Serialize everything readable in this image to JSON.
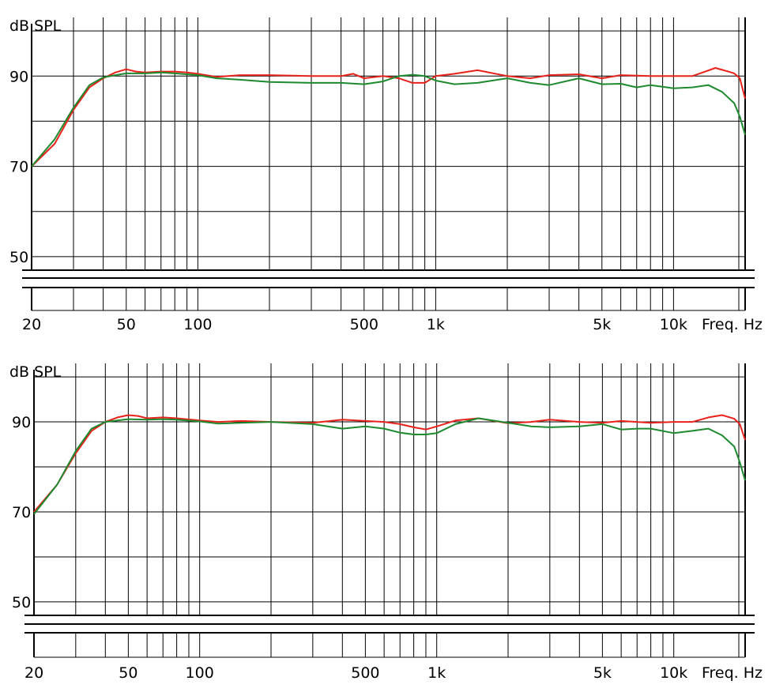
{
  "chart_data": [
    {
      "type": "line",
      "ylabel": "dB SPL",
      "xlabel": "Freq. Hz",
      "x_scale": "log",
      "xlim": [
        20,
        20000
      ],
      "ylim": [
        47,
        103
      ],
      "y_ticks": [
        50,
        70,
        90
      ],
      "x_ticks": [
        20,
        50,
        100,
        500,
        "1k",
        "5k",
        "10k"
      ],
      "grid": true,
      "legend": "none",
      "series": [
        {
          "color": "#e8221b",
          "points": [
            [
              20,
              70
            ],
            [
              25,
              75
            ],
            [
              30,
              82.5
            ],
            [
              35,
              87.5
            ],
            [
              40,
              89.5
            ],
            [
              45,
              90.8
            ],
            [
              50,
              91.5
            ],
            [
              55,
              91
            ],
            [
              60,
              90.8
            ],
            [
              70,
              91
            ],
            [
              80,
              91
            ],
            [
              90,
              90.8
            ],
            [
              100,
              90.5
            ],
            [
              120,
              89.8
            ],
            [
              150,
              90.2
            ],
            [
              200,
              90.2
            ],
            [
              300,
              90
            ],
            [
              400,
              90
            ],
            [
              450,
              90.5
            ],
            [
              500,
              89.5
            ],
            [
              600,
              90
            ],
            [
              700,
              89.5
            ],
            [
              800,
              88.5
            ],
            [
              900,
              88.5
            ],
            [
              1000,
              90
            ],
            [
              1200,
              90.5
            ],
            [
              1500,
              91.3
            ],
            [
              2000,
              90
            ],
            [
              2500,
              89.5
            ],
            [
              3000,
              90.2
            ],
            [
              4000,
              90.4
            ],
            [
              5000,
              89.5
            ],
            [
              6000,
              90.2
            ],
            [
              8000,
              90
            ],
            [
              10000,
              90
            ],
            [
              12000,
              90
            ],
            [
              15000,
              91.8
            ],
            [
              17000,
              91
            ],
            [
              18000,
              90.6
            ],
            [
              19000,
              89.5
            ],
            [
              20000,
              85
            ]
          ]
        },
        {
          "color": "#1e8a2f",
          "points": [
            [
              20,
              70
            ],
            [
              25,
              76
            ],
            [
              30,
              83
            ],
            [
              35,
              88
            ],
            [
              40,
              89.7
            ],
            [
              45,
              90.2
            ],
            [
              50,
              90.6
            ],
            [
              60,
              90.6
            ],
            [
              70,
              90.8
            ],
            [
              80,
              90.6
            ],
            [
              100,
              90.2
            ],
            [
              120,
              89.5
            ],
            [
              150,
              89.2
            ],
            [
              200,
              88.7
            ],
            [
              300,
              88.5
            ],
            [
              400,
              88.5
            ],
            [
              500,
              88.2
            ],
            [
              600,
              88.8
            ],
            [
              700,
              90
            ],
            [
              800,
              90.3
            ],
            [
              900,
              90
            ],
            [
              1000,
              89
            ],
            [
              1200,
              88.2
            ],
            [
              1500,
              88.5
            ],
            [
              2000,
              89.5
            ],
            [
              2500,
              88.5
            ],
            [
              3000,
              88
            ],
            [
              4000,
              89.5
            ],
            [
              5000,
              88.2
            ],
            [
              6000,
              88.3
            ],
            [
              7000,
              87.5
            ],
            [
              8000,
              88
            ],
            [
              10000,
              87.3
            ],
            [
              12000,
              87.5
            ],
            [
              14000,
              88
            ],
            [
              16000,
              86.5
            ],
            [
              18000,
              84
            ],
            [
              19000,
              81
            ],
            [
              20000,
              77
            ]
          ]
        }
      ]
    },
    {
      "type": "line",
      "ylabel": "dB SPL",
      "xlabel": "Freq. Hz",
      "x_scale": "log",
      "xlim": [
        20,
        20000
      ],
      "ylim": [
        47,
        103
      ],
      "y_ticks": [
        50,
        70,
        90
      ],
      "x_ticks": [
        20,
        50,
        100,
        500,
        "1k",
        "5k",
        "10k"
      ],
      "grid": true,
      "legend": "none",
      "series": [
        {
          "color": "#e8221b",
          "points": [
            [
              20,
              70
            ],
            [
              25,
              76
            ],
            [
              30,
              83
            ],
            [
              35,
              88
            ],
            [
              40,
              90
            ],
            [
              45,
              91
            ],
            [
              50,
              91.5
            ],
            [
              55,
              91.3
            ],
            [
              60,
              90.8
            ],
            [
              70,
              91
            ],
            [
              80,
              90.8
            ],
            [
              100,
              90.3
            ],
            [
              120,
              90
            ],
            [
              150,
              90.2
            ],
            [
              200,
              90
            ],
            [
              300,
              89.8
            ],
            [
              400,
              90.5
            ],
            [
              500,
              90.2
            ],
            [
              600,
              90
            ],
            [
              700,
              89.5
            ],
            [
              800,
              88.8
            ],
            [
              900,
              88.3
            ],
            [
              1000,
              89
            ],
            [
              1200,
              90.3
            ],
            [
              1500,
              90.8
            ],
            [
              2000,
              89.7
            ],
            [
              2500,
              90
            ],
            [
              3000,
              90.5
            ],
            [
              4000,
              90
            ],
            [
              5000,
              89.8
            ],
            [
              6000,
              90.2
            ],
            [
              8000,
              89.8
            ],
            [
              10000,
              90
            ],
            [
              12000,
              90
            ],
            [
              14000,
              91
            ],
            [
              16000,
              91.5
            ],
            [
              18000,
              90.7
            ],
            [
              19000,
              89.5
            ],
            [
              20000,
              86
            ]
          ]
        },
        {
          "color": "#1e8a2f",
          "points": [
            [
              20,
              69.5
            ],
            [
              25,
              76
            ],
            [
              30,
              83.5
            ],
            [
              35,
              88.5
            ],
            [
              40,
              90
            ],
            [
              45,
              90.3
            ],
            [
              50,
              90.6
            ],
            [
              60,
              90.5
            ],
            [
              70,
              90.6
            ],
            [
              80,
              90.5
            ],
            [
              100,
              90.1
            ],
            [
              120,
              89.6
            ],
            [
              150,
              89.8
            ],
            [
              200,
              90
            ],
            [
              300,
              89.5
            ],
            [
              400,
              88.5
            ],
            [
              500,
              89
            ],
            [
              600,
              88.5
            ],
            [
              700,
              87.6
            ],
            [
              800,
              87.2
            ],
            [
              900,
              87.2
            ],
            [
              1000,
              87.5
            ],
            [
              1200,
              89.5
            ],
            [
              1500,
              90.8
            ],
            [
              2000,
              89.8
            ],
            [
              2500,
              89
            ],
            [
              3000,
              88.8
            ],
            [
              4000,
              89
            ],
            [
              5000,
              89.5
            ],
            [
              6000,
              88.3
            ],
            [
              7000,
              88.5
            ],
            [
              8000,
              88.5
            ],
            [
              10000,
              87.5
            ],
            [
              12000,
              88
            ],
            [
              14000,
              88.5
            ],
            [
              16000,
              87
            ],
            [
              18000,
              84.5
            ],
            [
              19000,
              81
            ],
            [
              20000,
              77
            ]
          ]
        }
      ]
    }
  ]
}
